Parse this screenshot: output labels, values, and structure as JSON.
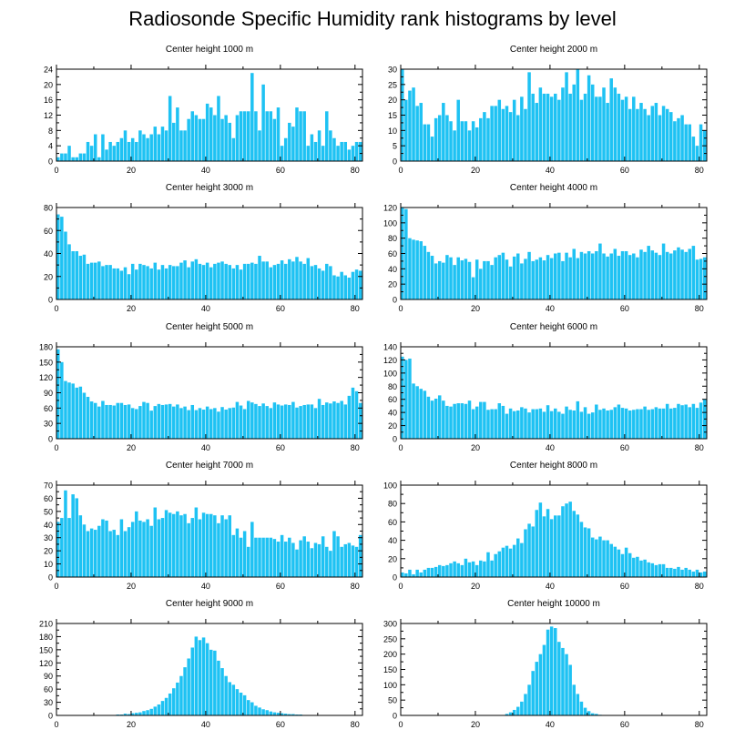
{
  "page": {
    "title": "Radiosonde Specific Humidity rank histograms by level"
  },
  "style": {
    "bar_color": "#1ec2f3",
    "bar_gap_color": "#ffffff",
    "axis_color": "#000000"
  },
  "chart_data": [
    {
      "type": "bar",
      "title": "Center height 1000 m",
      "x_range": [
        0,
        82
      ],
      "ylim": [
        0,
        24
      ],
      "x_ticks": [
        0,
        20,
        40,
        60,
        80
      ],
      "y_ticks": [
        0,
        4,
        8,
        12,
        16,
        20,
        24
      ],
      "values": [
        1,
        2,
        2,
        4,
        1,
        1,
        2,
        2,
        5,
        4,
        7,
        1,
        7,
        3,
        5,
        4,
        5,
        6,
        8,
        5,
        6,
        5,
        8,
        7,
        6,
        7,
        9,
        7,
        9,
        8,
        17,
        10,
        14,
        8,
        8,
        11,
        13,
        12,
        11,
        11,
        15,
        14,
        12,
        17,
        11,
        12,
        10,
        6,
        12,
        13,
        13,
        13,
        23,
        13,
        8,
        20,
        13,
        13,
        11,
        14,
        4,
        6,
        10,
        9,
        14,
        13,
        13,
        4,
        7,
        5,
        8,
        4,
        13,
        8,
        6,
        4,
        5,
        5,
        3,
        4,
        5,
        5
      ]
    },
    {
      "type": "bar",
      "title": "Center height 2000 m",
      "x_range": [
        0,
        82
      ],
      "ylim": [
        0,
        30
      ],
      "x_ticks": [
        0,
        20,
        40,
        60,
        80
      ],
      "y_ticks": [
        0,
        5,
        10,
        15,
        20,
        25,
        30
      ],
      "values": [
        30,
        20,
        23,
        24,
        18,
        19,
        12,
        12,
        8,
        14,
        15,
        19,
        15,
        13,
        10,
        20,
        13,
        13,
        10,
        13,
        11,
        14,
        16,
        14,
        18,
        18,
        20,
        17,
        18,
        16,
        20,
        15,
        21,
        17,
        29,
        22,
        19,
        24,
        22,
        22,
        21,
        22,
        20,
        24,
        29,
        22,
        25,
        30,
        20,
        22,
        28,
        25,
        21,
        21,
        24,
        19,
        27,
        24,
        22,
        20,
        21,
        17,
        21,
        17,
        19,
        17,
        15,
        18,
        19,
        15,
        18,
        17,
        16,
        13,
        14,
        15,
        12,
        12,
        8,
        5,
        12,
        10
      ]
    },
    {
      "type": "bar",
      "title": "Center height 3000 m",
      "x_range": [
        0,
        82
      ],
      "ylim": [
        0,
        80
      ],
      "x_ticks": [
        0,
        20,
        40,
        60,
        80
      ],
      "y_ticks": [
        0,
        20,
        40,
        60,
        80
      ],
      "values": [
        74,
        72,
        59,
        48,
        42,
        42,
        38,
        39,
        31,
        32,
        32,
        33,
        29,
        30,
        30,
        27,
        27,
        25,
        28,
        22,
        31,
        26,
        31,
        30,
        29,
        27,
        32,
        26,
        30,
        27,
        30,
        29,
        29,
        32,
        34,
        28,
        33,
        35,
        31,
        30,
        32,
        28,
        31,
        32,
        33,
        31,
        30,
        27,
        30,
        26,
        31,
        31,
        32,
        31,
        38,
        33,
        33,
        28,
        30,
        31,
        34,
        31,
        35,
        33,
        37,
        33,
        31,
        36,
        29,
        30,
        27,
        25,
        31,
        29,
        21,
        20,
        24,
        21,
        19,
        24,
        26,
        25
      ]
    },
    {
      "type": "bar",
      "title": "Center height 4000 m",
      "x_range": [
        0,
        82
      ],
      "ylim": [
        0,
        120
      ],
      "x_ticks": [
        0,
        20,
        40,
        60,
        80
      ],
      "y_ticks": [
        0,
        20,
        40,
        60,
        80,
        100,
        120
      ],
      "values": [
        120,
        118,
        80,
        78,
        77,
        76,
        70,
        62,
        57,
        47,
        50,
        48,
        58,
        55,
        45,
        55,
        51,
        53,
        49,
        29,
        52,
        40,
        50,
        50,
        45,
        55,
        58,
        61,
        52,
        43,
        56,
        60,
        47,
        53,
        62,
        50,
        52,
        55,
        51,
        58,
        54,
        60,
        61,
        50,
        61,
        55,
        66,
        54,
        62,
        60,
        63,
        60,
        63,
        73,
        60,
        56,
        60,
        66,
        57,
        63,
        63,
        58,
        60,
        55,
        65,
        62,
        70,
        64,
        61,
        58,
        73,
        62,
        60,
        64,
        68,
        65,
        62,
        66,
        70,
        52,
        53,
        55
      ]
    },
    {
      "type": "bar",
      "title": "Center height 5000 m",
      "x_range": [
        0,
        82
      ],
      "ylim": [
        0,
        180
      ],
      "x_ticks": [
        0,
        20,
        40,
        60,
        80
      ],
      "y_ticks": [
        0,
        30,
        60,
        90,
        120,
        150,
        180
      ],
      "values": [
        175,
        150,
        113,
        110,
        108,
        100,
        102,
        90,
        82,
        73,
        70,
        63,
        74,
        66,
        66,
        65,
        70,
        70,
        66,
        67,
        60,
        58,
        64,
        72,
        70,
        55,
        64,
        68,
        66,
        67,
        68,
        63,
        67,
        60,
        63,
        56,
        66,
        56,
        60,
        57,
        63,
        58,
        60,
        53,
        62,
        57,
        60,
        61,
        72,
        65,
        58,
        74,
        71,
        68,
        64,
        69,
        64,
        60,
        71,
        67,
        65,
        67,
        66,
        72,
        61,
        64,
        66,
        67,
        67,
        60,
        78,
        66,
        71,
        69,
        73,
        70,
        74,
        67,
        84,
        100,
        93,
        70
      ]
    },
    {
      "type": "bar",
      "title": "Center height 6000 m",
      "x_range": [
        0,
        82
      ],
      "ylim": [
        0,
        140
      ],
      "x_ticks": [
        0,
        20,
        40,
        60,
        80
      ],
      "y_ticks": [
        0,
        20,
        40,
        60,
        80,
        100,
        120,
        140
      ],
      "values": [
        125,
        120,
        122,
        84,
        80,
        76,
        73,
        64,
        58,
        61,
        66,
        58,
        50,
        49,
        53,
        54,
        54,
        53,
        58,
        45,
        49,
        56,
        56,
        44,
        45,
        45,
        54,
        50,
        38,
        46,
        42,
        43,
        48,
        46,
        40,
        45,
        45,
        46,
        41,
        51,
        42,
        46,
        41,
        38,
        49,
        44,
        43,
        57,
        41,
        48,
        38,
        40,
        52,
        44,
        46,
        43,
        44,
        48,
        52,
        47,
        46,
        43,
        44,
        45,
        45,
        49,
        44,
        45,
        48,
        46,
        46,
        53,
        46,
        47,
        53,
        51,
        52,
        48,
        53,
        47,
        55,
        60
      ]
    },
    {
      "type": "bar",
      "title": "Center height 7000 m",
      "x_range": [
        0,
        82
      ],
      "ylim": [
        0,
        70
      ],
      "x_ticks": [
        0,
        20,
        40,
        60,
        80
      ],
      "y_ticks": [
        0,
        10,
        20,
        30,
        40,
        50,
        60,
        70
      ],
      "values": [
        42,
        45,
        66,
        45,
        63,
        60,
        47,
        40,
        35,
        37,
        36,
        39,
        44,
        43,
        35,
        36,
        32,
        44,
        35,
        38,
        42,
        50,
        43,
        42,
        44,
        39,
        53,
        44,
        45,
        51,
        49,
        48,
        50,
        47,
        48,
        41,
        45,
        53,
        44,
        49,
        48,
        48,
        47,
        41,
        47,
        44,
        47,
        32,
        37,
        30,
        35,
        23,
        42,
        30,
        30,
        30,
        30,
        30,
        29,
        27,
        32,
        27,
        30,
        26,
        21,
        28,
        31,
        27,
        22,
        26,
        25,
        31,
        23,
        20,
        35,
        31,
        23,
        25,
        26,
        24,
        23,
        32
      ]
    },
    {
      "type": "bar",
      "title": "Center height 8000 m",
      "x_range": [
        0,
        82
      ],
      "ylim": [
        0,
        100
      ],
      "x_ticks": [
        0,
        20,
        40,
        60,
        80
      ],
      "y_ticks": [
        0,
        20,
        40,
        60,
        80,
        100
      ],
      "values": [
        5,
        4,
        8,
        3,
        8,
        5,
        8,
        10,
        10,
        11,
        13,
        12,
        13,
        15,
        17,
        15,
        13,
        20,
        16,
        17,
        13,
        18,
        17,
        27,
        18,
        25,
        28,
        32,
        34,
        31,
        35,
        42,
        37,
        52,
        58,
        55,
        73,
        81,
        66,
        74,
        63,
        67,
        67,
        77,
        80,
        82,
        72,
        68,
        60,
        54,
        53,
        43,
        41,
        44,
        40,
        40,
        36,
        33,
        30,
        25,
        32,
        26,
        21,
        22,
        18,
        19,
        16,
        15,
        13,
        14,
        14,
        10,
        10,
        9,
        11,
        8,
        10,
        8,
        6,
        8,
        5,
        6
      ]
    },
    {
      "type": "bar",
      "title": "Center height 9000 m",
      "x_range": [
        0,
        82
      ],
      "ylim": [
        0,
        210
      ],
      "x_ticks": [
        0,
        20,
        40,
        60,
        80
      ],
      "y_ticks": [
        0,
        30,
        60,
        90,
        120,
        150,
        180,
        210
      ],
      "values": [
        0,
        0,
        0,
        0,
        0,
        0,
        0,
        0,
        0,
        0,
        0,
        0,
        1,
        1,
        1,
        1,
        2,
        2,
        4,
        3,
        5,
        6,
        7,
        10,
        12,
        15,
        20,
        25,
        33,
        40,
        50,
        62,
        75,
        90,
        110,
        130,
        155,
        180,
        172,
        178,
        165,
        150,
        148,
        125,
        108,
        90,
        76,
        70,
        60,
        52,
        46,
        35,
        30,
        22,
        18,
        14,
        12,
        9,
        7,
        6,
        5,
        4,
        3,
        3,
        2,
        2,
        1,
        1,
        1,
        1,
        0,
        0,
        0,
        0,
        0,
        0,
        0,
        0,
        0,
        0,
        0,
        0
      ]
    },
    {
      "type": "bar",
      "title": "Center height 10000 m",
      "x_range": [
        0,
        82
      ],
      "ylim": [
        0,
        300
      ],
      "x_ticks": [
        0,
        20,
        40,
        60,
        80
      ],
      "y_ticks": [
        0,
        50,
        100,
        150,
        200,
        250,
        300
      ],
      "values": [
        0,
        0,
        0,
        0,
        0,
        0,
        0,
        0,
        0,
        0,
        0,
        0,
        0,
        0,
        0,
        0,
        0,
        0,
        0,
        0,
        0,
        0,
        0,
        0,
        0,
        0,
        0,
        0,
        5,
        10,
        18,
        28,
        45,
        70,
        100,
        145,
        175,
        200,
        230,
        280,
        290,
        285,
        240,
        220,
        200,
        165,
        100,
        70,
        45,
        25,
        14,
        7,
        5,
        2,
        1,
        1,
        0,
        0,
        0,
        0,
        0,
        0,
        0,
        0,
        0,
        0,
        0,
        0,
        0,
        0,
        0,
        0,
        0,
        0,
        0,
        0,
        0,
        0,
        0,
        0,
        0,
        0
      ]
    }
  ]
}
